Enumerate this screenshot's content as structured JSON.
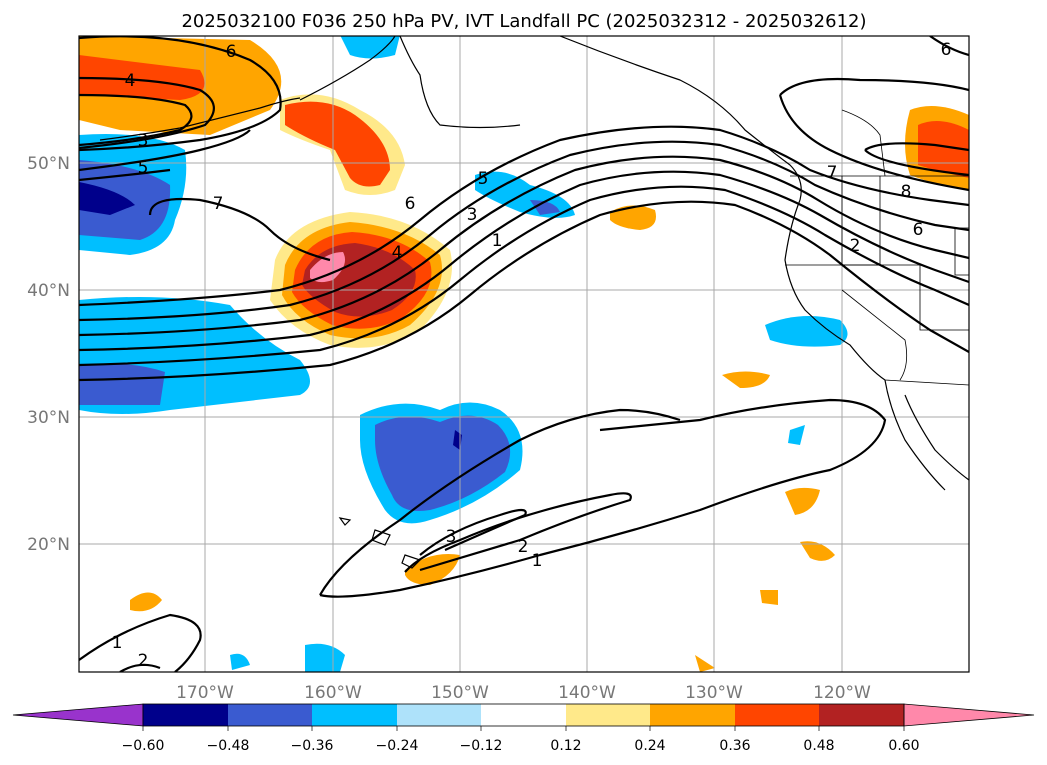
{
  "title": "2025032100 F036 250 hPa PV, IVT Landfall PC (2025032312 - 2025032612)",
  "axes": {
    "lon_ticks": [
      "170°W",
      "160°W",
      "150°W",
      "140°W",
      "130°W",
      "120°W"
    ],
    "lat_ticks": [
      "50°N",
      "40°N",
      "30°N",
      "20°N"
    ],
    "lon_range": [
      -180,
      -110
    ],
    "lat_range": [
      10,
      60
    ],
    "grid": true
  },
  "colorbar": {
    "tick_labels": [
      "−0.60",
      "−0.48",
      "−0.36",
      "−0.24",
      "−0.12",
      "0.12",
      "0.24",
      "0.36",
      "0.48",
      "0.60"
    ],
    "colors": [
      "#9933cc",
      "#00008b",
      "#3a5bd0",
      "#00bfff",
      "#aee2fa",
      "#ffffff",
      "#ffe98a",
      "#ffa500",
      "#ff4500",
      "#b22222",
      "#ff88aa"
    ],
    "extend": "both"
  },
  "contour_labels": [
    "6",
    "4",
    "3",
    "5",
    "7",
    "6",
    "5",
    "3",
    "4",
    "1",
    "2",
    "6",
    "8",
    "7",
    "6",
    "3",
    "2",
    "1",
    "1",
    "2"
  ],
  "colors": {
    "dark_blue": "#00008b",
    "blue": "#3a5bd0",
    "cyan": "#00bfff",
    "light_yellow": "#ffe98a",
    "orange": "#ffa500",
    "red_orange": "#ff4500",
    "dark_red": "#b22222",
    "pink": "#ff88aa"
  }
}
